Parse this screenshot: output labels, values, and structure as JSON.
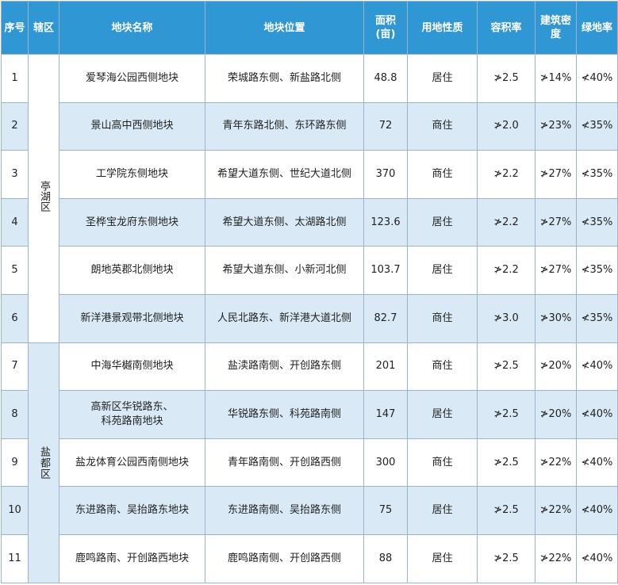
{
  "table": {
    "headers": {
      "seq": "序号",
      "district": "辖区",
      "name": "地块名称",
      "location": "地块位置",
      "area": "面积(亩)",
      "use": "用地性质",
      "far": "容积率",
      "density": "建筑密度",
      "green": "绿地率"
    },
    "districts": [
      "亭湖区",
      "盐都区"
    ],
    "rows": [
      {
        "seq": "1",
        "name": "爱琴海公园西侧地块",
        "location": "荣城路东侧、新盐路北侧",
        "area": "48.8",
        "use": "居住",
        "far": "≯2.5",
        "density": "≯14%",
        "green": "≮40%"
      },
      {
        "seq": "2",
        "name": "景山高中西侧地块",
        "location": "青年东路北侧、东环路东侧",
        "area": "72",
        "use": "商住",
        "far": "≯2.0",
        "density": "≯23%",
        "green": "≮35%"
      },
      {
        "seq": "3",
        "name": "工学院东侧地块",
        "location": "希望大道东侧、世纪大道北侧",
        "area": "370",
        "use": "商住",
        "far": "≯2.2",
        "density": "≯27%",
        "green": "≮35%"
      },
      {
        "seq": "4",
        "name": "圣桦宝龙府东侧地块",
        "location": "希望大道东侧、太湖路北侧",
        "area": "123.6",
        "use": "居住",
        "far": "≯2.2",
        "density": "≯27%",
        "green": "≮35%"
      },
      {
        "seq": "5",
        "name": "朗地英郡北侧地块",
        "location": "希望大道东侧、小新河北侧",
        "area": "103.7",
        "use": "居住",
        "far": "≯2.2",
        "density": "≯27%",
        "green": "≮35%"
      },
      {
        "seq": "6",
        "name": "新洋港景观带北侧地块",
        "location": "人民北路东、新洋港大道北侧",
        "area": "82.7",
        "use": "商住",
        "far": "≯3.0",
        "density": "≯30%",
        "green": "≮35%"
      },
      {
        "seq": "7",
        "name": "中海华樾南侧地块",
        "location": "盐渎路南侧、开创路东侧",
        "area": "201",
        "use": "商住",
        "far": "≯2.5",
        "density": "≯20%",
        "green": "≮40%"
      },
      {
        "seq": "8",
        "name": "高新区华锐路东、\n科苑路南地块",
        "location": "华锐路东侧、科苑路南侧",
        "area": "147",
        "use": "居住",
        "far": "≯2.5",
        "density": "≯20%",
        "green": "≮40%"
      },
      {
        "seq": "9",
        "name": "盐龙体育公园西南侧地块",
        "location": "青年路南侧、开创路西侧",
        "area": "300",
        "use": "商住",
        "far": "≯2.5",
        "density": "≯22%",
        "green": "≮40%"
      },
      {
        "seq": "10",
        "name": "东进路南、吴抬路东地块",
        "location": "东进路南侧、吴抬路东侧",
        "area": "75",
        "use": "居住",
        "far": "≯2.5",
        "density": "≯22%",
        "green": "≮40%"
      },
      {
        "seq": "11",
        "name": "鹿鸣路南、开创路西地块",
        "location": "鹿鸣路南侧、开创路西侧",
        "area": "88",
        "use": "居住",
        "far": "≯2.5",
        "density": "≯22%",
        "green": "≮40%"
      }
    ]
  },
  "colors": {
    "header_bg": "#2f97d3",
    "band_bg": "#d9eaf6",
    "border": "#9bb4c7"
  }
}
